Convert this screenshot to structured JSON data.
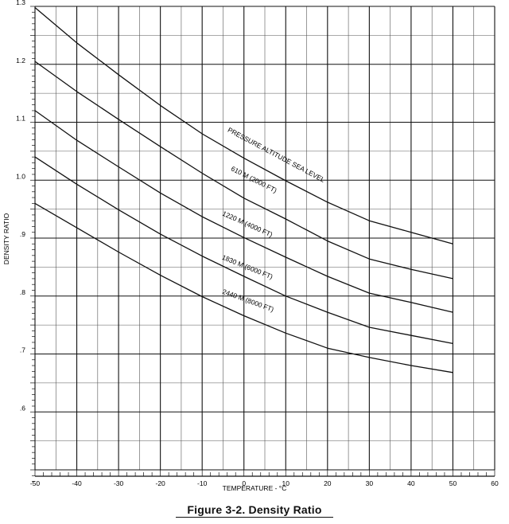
{
  "caption": "Figure 3-2. Density Ratio",
  "chart_data": {
    "type": "line",
    "title": "",
    "xlabel": "TEMPERATURE - °C",
    "ylabel": "DENSITY RATIO",
    "xlim": [
      -50,
      60
    ],
    "ylim": [
      0.5,
      1.3
    ],
    "x_ticks": [
      -50,
      -40,
      -30,
      -20,
      -10,
      0,
      10,
      20,
      30,
      40,
      50,
      60
    ],
    "x_tick_labels": [
      "-50",
      "-40",
      "-30",
      "-20",
      "-10",
      "0",
      "10",
      "20",
      "30",
      "40",
      "50",
      "60"
    ],
    "y_ticks": [
      0.6,
      0.7,
      0.8,
      0.9,
      1.0,
      1.1,
      1.2,
      1.3
    ],
    "y_tick_labels": [
      ".6",
      ".7",
      ".8",
      ".9",
      "1.0",
      "1.1",
      "1.2",
      "1.3"
    ],
    "grid": true,
    "x": [
      -50,
      -40,
      -30,
      -20,
      -10,
      0,
      10,
      20,
      30,
      40,
      50
    ],
    "series": [
      {
        "name": "PRESSURE ALTITUDE SEA LEVEL",
        "values": [
          1.298,
          1.237,
          1.182,
          1.129,
          1.08,
          1.038,
          0.999,
          0.962,
          0.93,
          0.91,
          0.89
        ]
      },
      {
        "name": "610 M (2000 FT)",
        "values": [
          1.205,
          1.153,
          1.105,
          1.058,
          1.012,
          0.969,
          0.933,
          0.895,
          0.864,
          0.846,
          0.83
        ]
      },
      {
        "name": "1220 M (4000 FT)",
        "values": [
          1.12,
          1.069,
          1.023,
          0.978,
          0.937,
          0.901,
          0.867,
          0.834,
          0.805,
          0.789,
          0.772
        ]
      },
      {
        "name": "1830 M (6000 FT)",
        "values": [
          1.04,
          0.993,
          0.949,
          0.907,
          0.869,
          0.834,
          0.8,
          0.772,
          0.746,
          0.732,
          0.718
        ]
      },
      {
        "name": "2440 M (8000 FT)",
        "values": [
          0.96,
          0.918,
          0.876,
          0.836,
          0.799,
          0.766,
          0.736,
          0.71,
          0.694,
          0.68,
          0.668
        ]
      }
    ]
  }
}
